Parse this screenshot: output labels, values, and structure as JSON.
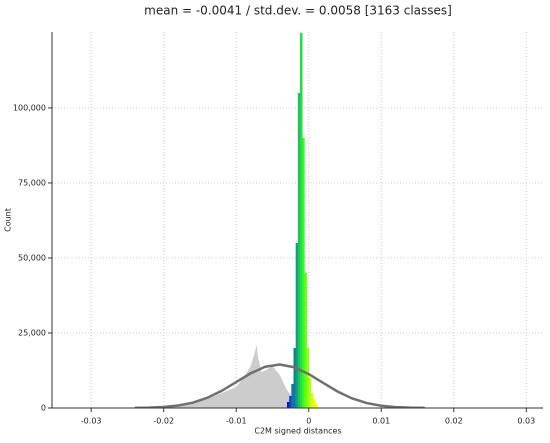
{
  "chart_data": {
    "type": "histogram",
    "title": "mean = -0.0041 / std.dev. = 0.0058 [3163 classes]",
    "xlabel": "C2M signed distances",
    "ylabel": "Count",
    "xlim": [
      -0.0354,
      0.0323
    ],
    "ylim": [
      0,
      125300
    ],
    "xticks": [
      -0.03,
      -0.02,
      -0.01,
      0,
      0.01,
      0.02,
      0.03
    ],
    "yticks": [
      0,
      {
        "value": 25000,
        "label": "25,000"
      },
      {
        "value": 50000,
        "label": "50,000"
      },
      {
        "value": 75000,
        "label": "75,000"
      },
      {
        "value": 100000,
        "label": "100,000"
      }
    ],
    "grid": true,
    "background": {
      "type": "area",
      "color": "#cccccc",
      "x": [
        -0.03,
        -0.02,
        -0.016,
        -0.014,
        -0.012,
        -0.01,
        -0.009,
        -0.008,
        -0.0075,
        -0.0072,
        -0.007,
        -0.0065,
        -0.006,
        -0.005,
        -0.004,
        -0.003,
        -0.002,
        -0.001,
        0
      ],
      "values": [
        0,
        300,
        1500,
        3000,
        5000,
        7000,
        10000,
        14000,
        18000,
        21000,
        17000,
        12000,
        12500,
        14000,
        11000,
        6000,
        3000,
        800,
        0
      ]
    },
    "bins": [
      -0.003,
      -0.0027,
      -0.0024,
      -0.0021,
      -0.0018,
      -0.0015,
      -0.0012,
      -0.0009,
      -0.0006,
      -0.0003,
      0,
      0.0003,
      0.0006,
      0.0009,
      0.0012
    ],
    "counts": [
      2000,
      4000,
      8000,
      20000,
      55000,
      105000,
      125000,
      90000,
      45000,
      20000,
      10000,
      5000,
      3000,
      1500
    ],
    "colors": [
      "#1010c0",
      "#1040d0",
      "#1070c0",
      "#108090",
      "#10a080",
      "#20c060",
      "#20e040",
      "#30ff20",
      "#60ff10",
      "#90ff10",
      "#b0ff10",
      "#d0ff10",
      "#f0ff10",
      "#ffff00"
    ],
    "fit": {
      "type": "line",
      "color": "#707070",
      "x": [
        -0.024,
        -0.022,
        -0.02,
        -0.018,
        -0.016,
        -0.014,
        -0.012,
        -0.01,
        -0.008,
        -0.006,
        -0.004,
        -0.002,
        0,
        0.002,
        0.004,
        0.006,
        0.008,
        0.01,
        0.012,
        0.014,
        0.016
      ],
      "values": [
        40,
        124,
        339,
        821,
        1768,
        3379,
        5735,
        8642,
        11567,
        13742,
        14499,
        13581,
        11294,
        8340,
        5468,
        3184,
        1646,
        755,
        308,
        111,
        36
      ]
    }
  }
}
